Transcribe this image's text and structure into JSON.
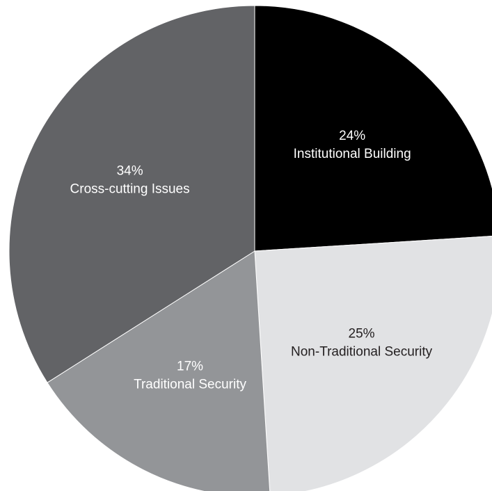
{
  "chart_data": {
    "type": "pie",
    "slices": [
      {
        "label": "Institutional Building",
        "value": 24,
        "value_label": "24%",
        "color": "#000000",
        "text_color": "#ffffff"
      },
      {
        "label": "Non-Traditional Security",
        "value": 25,
        "value_label": "25%",
        "color": "#e1e2e4",
        "text_color": "#231f20"
      },
      {
        "label": "Traditional Security",
        "value": 17,
        "value_label": "17%",
        "color": "#939598",
        "text_color": "#ffffff"
      },
      {
        "label": "Cross-cutting Issues",
        "value": 34,
        "value_label": "34%",
        "color": "#626366",
        "text_color": "#ffffff"
      }
    ],
    "title": "",
    "legend": "none",
    "start_angle": "12 o'clock",
    "direction": "clockwise"
  }
}
